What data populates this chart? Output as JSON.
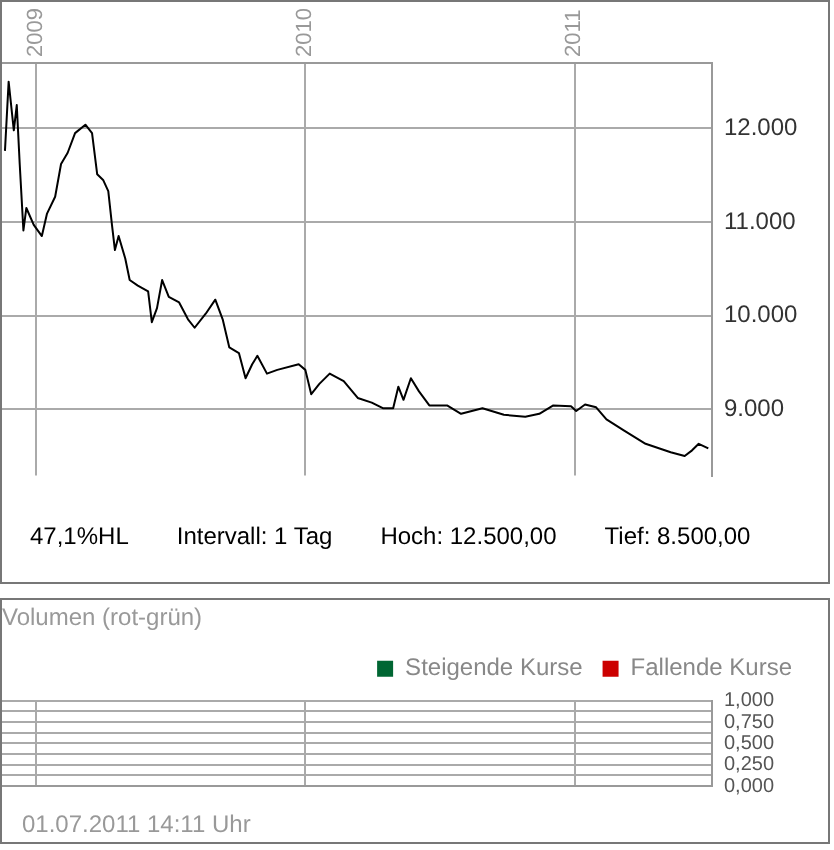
{
  "chart_data": [
    {
      "type": "line",
      "x": [
        "2008-11-20",
        "2008-11-25",
        "2008-12-02",
        "2008-12-06",
        "2008-12-10",
        "2008-12-15",
        "2008-12-19",
        "2008-12-29",
        "2009-01-09",
        "2009-01-16",
        "2009-01-27",
        "2009-02-04",
        "2009-02-13",
        "2009-02-23",
        "2009-03-09",
        "2009-03-18",
        "2009-03-25",
        "2009-04-02",
        "2009-04-09",
        "2009-04-14",
        "2009-04-18",
        "2009-04-23",
        "2009-05-02",
        "2009-05-08",
        "2009-05-19",
        "2009-06-02",
        "2009-06-07",
        "2009-06-14",
        "2009-06-21",
        "2009-06-30",
        "2009-07-14",
        "2009-07-26",
        "2009-08-04",
        "2009-08-19",
        "2009-09-01",
        "2009-09-11",
        "2009-09-20",
        "2009-10-03",
        "2009-10-12",
        "2009-10-21",
        "2009-10-28",
        "2009-11-10",
        "2009-11-24",
        "2009-12-23",
        "2010-01-01",
        "2010-01-09",
        "2010-01-20",
        "2010-02-03",
        "2010-02-22",
        "2010-03-13",
        "2010-04-01",
        "2010-04-16",
        "2010-04-30",
        "2010-05-07",
        "2010-05-14",
        "2010-05-24",
        "2010-06-04",
        "2010-06-18",
        "2010-07-12",
        "2010-07-31",
        "2010-08-29",
        "2010-09-27",
        "2010-10-26",
        "2010-11-14",
        "2010-12-03",
        "2010-12-27",
        "2011-01-03",
        "2011-01-15",
        "2011-01-30",
        "2011-02-13",
        "2011-03-09",
        "2011-04-07",
        "2011-04-26",
        "2011-05-11",
        "2011-05-30",
        "2011-06-09",
        "2011-06-18",
        "2011-07-01"
      ],
      "series": [
        {
          "color": "#000000",
          "values": [
            11760,
            12500,
            11980,
            12250,
            11620,
            10910,
            11150,
            10970,
            10850,
            11090,
            11270,
            11620,
            11740,
            11950,
            12040,
            11950,
            11510,
            11450,
            11330,
            10970,
            10700,
            10850,
            10610,
            10380,
            10320,
            10260,
            9930,
            10080,
            10380,
            10200,
            10140,
            9960,
            9870,
            10020,
            10170,
            9960,
            9660,
            9600,
            9330,
            9480,
            9570,
            9380,
            9420,
            9480,
            9420,
            9160,
            9270,
            9380,
            9300,
            9120,
            9070,
            9010,
            9010,
            9240,
            9100,
            9330,
            9190,
            9040,
            9040,
            8950,
            9010,
            8940,
            8920,
            8950,
            9040,
            9030,
            8980,
            9050,
            9020,
            8890,
            8770,
            8630,
            8580,
            8540,
            8500,
            8560,
            8630,
            8580
          ]
        }
      ],
      "xlim": [
        "2008-11-16",
        "2011-07-06"
      ],
      "xticks": [
        {
          "value": "2009-01-01",
          "label": "2009"
        },
        {
          "value": "2010-01-01",
          "label": "2010"
        },
        {
          "value": "2011-01-01",
          "label": "2011"
        }
      ],
      "ylim": [
        8290,
        12700
      ],
      "yticks": [
        {
          "value": 9000,
          "label": "9.000"
        },
        {
          "value": 10000,
          "label": "10.000"
        },
        {
          "value": 11000,
          "label": "11.000"
        },
        {
          "value": 12000,
          "label": "12.000"
        }
      ],
      "grid": true,
      "legend": false,
      "marker": "none",
      "line_style": "solid",
      "annotations": [
        "47,1%HL",
        "Intervall: 1 Tag",
        "Hoch: 12.500,00",
        "Tief: 8.500,00"
      ]
    },
    {
      "type": "bar",
      "title": "Volumen (rot-grün)",
      "series": [
        {
          "name": "Steigende Kurse",
          "color": "#006633"
        },
        {
          "name": "Fallende Kurse",
          "color": "#cc0000"
        }
      ],
      "ylim": [
        0,
        1
      ],
      "yticks": [
        {
          "value": 0,
          "label": "0,000"
        },
        {
          "value": 0.125,
          "label": null
        },
        {
          "value": 0.25,
          "label": "0,250"
        },
        {
          "value": 0.375,
          "label": null
        },
        {
          "value": 0.5,
          "label": "0,500"
        },
        {
          "value": 0.625,
          "label": null
        },
        {
          "value": 0.75,
          "label": "0,750"
        },
        {
          "value": 0.875,
          "label": null
        },
        {
          "value": 1,
          "label": "1,000"
        }
      ],
      "grid": true,
      "legend": "top right",
      "tick_labels": "y",
      "annotations": [
        "01.07.2011 14:11 Uhr"
      ]
    }
  ]
}
